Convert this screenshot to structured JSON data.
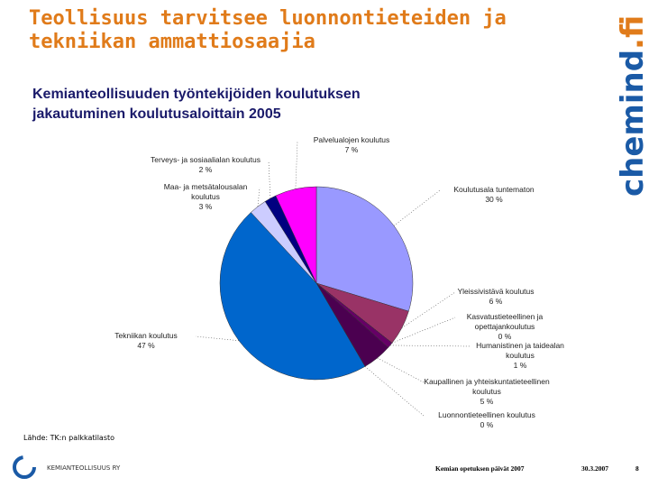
{
  "slide": {
    "title_lines": [
      "Teollisuus tarvitsee luonnontieteiden ja",
      "tekniikan ammattiosaajia"
    ],
    "logo": {
      "name": "chemind",
      "suffix": ".fi"
    },
    "source": "Lähde: TK:n palkkatilasto",
    "org": "KEMIANTEOLLISUUS RY",
    "event": "Kemian opetuksen päivät 2007",
    "date": "30.3.2007",
    "page": "8"
  },
  "chart_data": {
    "type": "pie",
    "title_lines": [
      "Kemianteollisuuden työntekijöiden koulutuksen",
      "jakautuminen koulutusaloittain 2005"
    ],
    "categories": [
      "Koulutusala tuntematon",
      "Yleissivistävä koulutus",
      "Kasvatustieteellinen ja opettajankoulutus",
      "Humanistinen ja taidealan koulutus",
      "Kaupallinen ja yhteiskuntatieteellinen koulutus",
      "Luonnontieteellinen koulutus",
      "Tekniikan koulutus",
      "Maa- ja metsätalousalan koulutus",
      "Terveys- ja sosiaalialan koulutus",
      "Palvelualojen koulutus"
    ],
    "values": [
      30,
      6,
      0,
      1,
      5,
      0,
      47,
      3,
      2,
      7
    ],
    "value_labels": [
      "30 %",
      "6 %",
      "0 %",
      "1 %",
      "5 %",
      "0 %",
      "47 %",
      "3 %",
      "2 %",
      "7 %"
    ],
    "colors": [
      "#9999ff",
      "#993366",
      "#ccffff",
      "#660066",
      "#4b0050",
      "#ffffcc",
      "#0066cc",
      "#ccccff",
      "#000080",
      "#ff00ff"
    ]
  }
}
